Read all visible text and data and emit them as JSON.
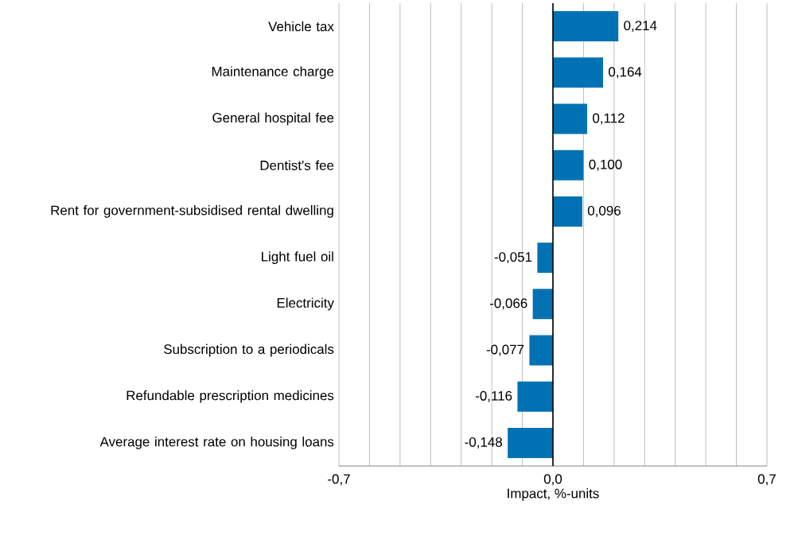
{
  "chart_data": {
    "type": "bar",
    "orientation": "horizontal",
    "xlabel": "Impact, %-units",
    "categories": [
      "Vehicle tax",
      "Maintenance charge",
      "General hospital fee",
      "Dentist's fee",
      "Rent for government-subsidised rental dwelling",
      "Light fuel oil",
      "Electricity",
      "Subscription to a periodicals",
      "Refundable prescription medicines",
      "Average interest rate on housing loans"
    ],
    "values": [
      0.214,
      0.164,
      0.112,
      0.1,
      0.096,
      -0.051,
      -0.066,
      -0.077,
      -0.116,
      -0.148
    ],
    "value_labels": [
      "0,214",
      "0,164",
      "0,112",
      "0,100",
      "0,096",
      "-0,051",
      "-0,066",
      "-0,077",
      "-0,116",
      "-0,148"
    ],
    "color": "#0072b3",
    "xlim": [
      -0.7,
      0.7
    ],
    "xticks": [
      {
        "value": -0.7,
        "label": "-0,7"
      },
      {
        "value": -0.6,
        "label": null
      },
      {
        "value": -0.5,
        "label": null
      },
      {
        "value": -0.4,
        "label": null
      },
      {
        "value": -0.3,
        "label": null
      },
      {
        "value": -0.2,
        "label": null
      },
      {
        "value": -0.1,
        "label": null
      },
      {
        "value": 0,
        "label": "0,0"
      },
      {
        "value": 0.1,
        "label": null
      },
      {
        "value": 0.2,
        "label": null
      },
      {
        "value": 0.3,
        "label": null
      },
      {
        "value": 0.4,
        "label": null
      },
      {
        "value": 0.5,
        "label": null
      },
      {
        "value": 0.6,
        "label": null
      },
      {
        "value": 0.7,
        "label": "0,7"
      }
    ],
    "grid": "x"
  }
}
